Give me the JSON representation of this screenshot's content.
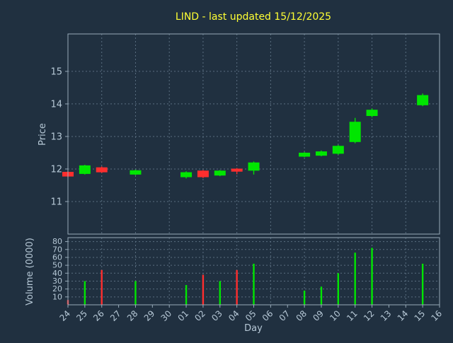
{
  "chart_data": {
    "type": "candlestick",
    "title": "LIND - last updated 15/12/2025",
    "xlabel": "Day",
    "price_axis": {
      "label": "Price",
      "ticks": [
        11,
        12,
        13,
        14,
        15
      ],
      "ylim": [
        10.0,
        16.15
      ]
    },
    "volume_axis": {
      "label": "Volume (0000)",
      "ticks": [
        10,
        20,
        30,
        40,
        50,
        60,
        70,
        80
      ],
      "ylim": [
        0,
        85
      ]
    },
    "days": [
      "24",
      "25",
      "26",
      "27",
      "28",
      "29",
      "30",
      "01",
      "02",
      "03",
      "04",
      "05",
      "06",
      "07",
      "08",
      "09",
      "10",
      "11",
      "12",
      "13",
      "14",
      "15",
      "16"
    ],
    "grid_every": 2,
    "legend": "none",
    "grid": "dashed",
    "colors": {
      "up": "#00e600",
      "down": "#ff2e2e",
      "background": "#203040",
      "grid": "#5a6e80",
      "text": "#b6c8d6",
      "title": "#ffff33",
      "spine": "#97aab8"
    },
    "candles": [
      {
        "day": "24",
        "open": 11.9,
        "high": 11.93,
        "low": 11.74,
        "close": 11.78,
        "volume": 6
      },
      {
        "day": "25",
        "open": 11.86,
        "high": 12.13,
        "low": 11.83,
        "close": 12.1,
        "volume": 30
      },
      {
        "day": "26",
        "open": 12.04,
        "high": 12.08,
        "low": 11.88,
        "close": 11.91,
        "volume": 44
      },
      {
        "day": "28",
        "open": 11.84,
        "high": 11.98,
        "low": 11.81,
        "close": 11.95,
        "volume": 30
      },
      {
        "day": "01",
        "open": 11.76,
        "high": 11.93,
        "low": 11.71,
        "close": 11.89,
        "volume": 25
      },
      {
        "day": "02",
        "open": 11.94,
        "high": 11.97,
        "low": 11.72,
        "close": 11.76,
        "volume": 38
      },
      {
        "day": "03",
        "open": 11.81,
        "high": 11.97,
        "low": 11.78,
        "close": 11.94,
        "volume": 30
      },
      {
        "day": "04",
        "open": 12.0,
        "high": 12.03,
        "low": 11.84,
        "close": 11.93,
        "volume": 44
      },
      {
        "day": "05",
        "open": 11.96,
        "high": 12.23,
        "low": 11.83,
        "close": 12.19,
        "volume": 52
      },
      {
        "day": "08",
        "open": 12.39,
        "high": 12.52,
        "low": 12.36,
        "close": 12.49,
        "volume": 18
      },
      {
        "day": "09",
        "open": 12.42,
        "high": 12.57,
        "low": 12.39,
        "close": 12.53,
        "volume": 23
      },
      {
        "day": "10",
        "open": 12.48,
        "high": 12.74,
        "low": 12.44,
        "close": 12.7,
        "volume": 40
      },
      {
        "day": "11",
        "open": 12.84,
        "high": 13.57,
        "low": 12.79,
        "close": 13.44,
        "volume": 66
      },
      {
        "day": "12",
        "open": 13.64,
        "high": 13.86,
        "low": 13.59,
        "close": 13.81,
        "volume": 72
      },
      {
        "day": "15",
        "open": 13.97,
        "high": 14.32,
        "low": 13.93,
        "close": 14.26,
        "volume": 52
      }
    ]
  }
}
